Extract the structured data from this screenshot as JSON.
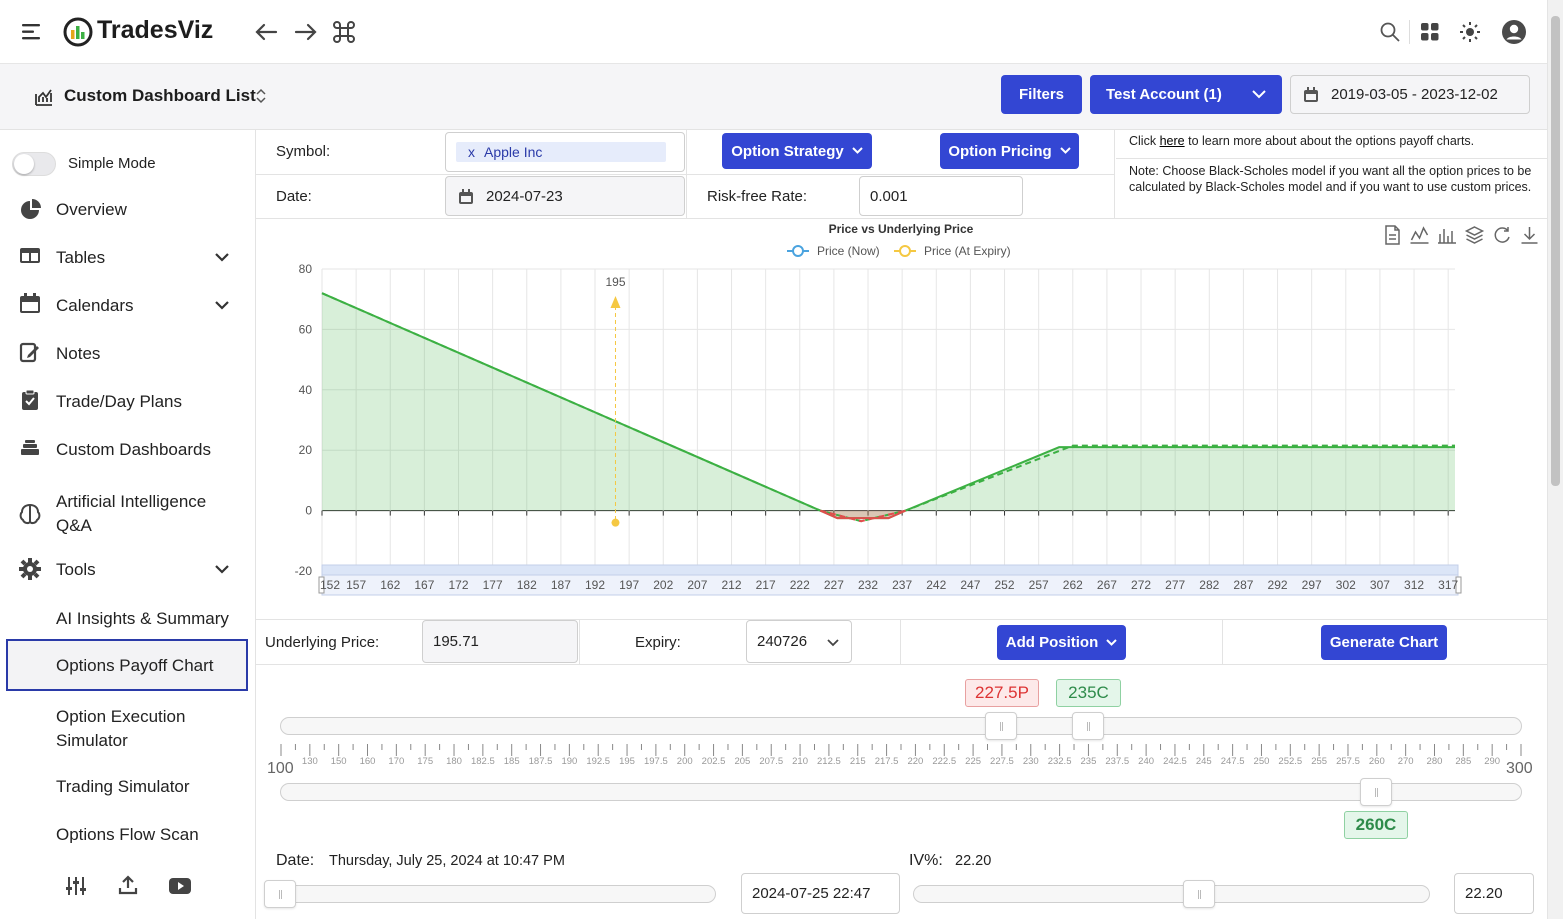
{
  "app": {
    "name": "TradesViz"
  },
  "subbar": {
    "title": "Custom Dashboard List",
    "filters_label": "Filters",
    "account_label": "Test Account (1)",
    "date_range": "2019-03-05 - 2023-12-02"
  },
  "sidebar": {
    "simple_mode_label": "Simple Mode",
    "items": [
      {
        "label": "Overview"
      },
      {
        "label": "Tables"
      },
      {
        "label": "Calendars"
      },
      {
        "label": "Notes"
      },
      {
        "label": "Trade/Day Plans"
      },
      {
        "label": "Custom Dashboards"
      },
      {
        "label": "Artificial Intelligence",
        "label2": "Q&A"
      },
      {
        "label": "Tools"
      }
    ],
    "subitems": [
      {
        "label": "AI Insights & Summary"
      },
      {
        "label": "Options Payoff Chart"
      },
      {
        "label": "Option Execution",
        "label2": "Simulator"
      },
      {
        "label": "Trading Simulator"
      },
      {
        "label": "Options Flow Scan"
      }
    ]
  },
  "form": {
    "symbol_label": "Symbol:",
    "symbol_tag_x": "x",
    "symbol_value": "Apple Inc",
    "date_label": "Date:",
    "date_value": "2024-07-23",
    "option_strategy_label": "Option Strategy",
    "option_pricing_label": "Option Pricing",
    "risk_free_label": "Risk-free Rate:",
    "risk_free_value": "0.001",
    "info_click": "Click",
    "info_link": "here",
    "info_rest": "to learn more about about the options payoff charts.",
    "note": "Note: Choose Black-Scholes model if you want all the option prices to be calculated by Black-Scholes model and if you want to use custom prices."
  },
  "chart_data": {
    "type": "area",
    "title": "Price vs Underlying Price",
    "legend": [
      "Price (Now)",
      "Price (At Expiry)"
    ],
    "colors": {
      "now": "#4aa3df",
      "expiry": "#f5c842",
      "payoff": "#3cb043",
      "loss": "#e14c4c"
    },
    "ylim": [
      -20,
      80
    ],
    "yticks": [
      -20,
      0,
      20,
      40,
      60,
      80
    ],
    "x_ticks": [
      "152",
      "157",
      "162",
      "167",
      "172",
      "177",
      "182",
      "187",
      "192",
      "197",
      "202",
      "207",
      "212",
      "217",
      "222",
      "227",
      "232",
      "237",
      "242",
      "247",
      "252",
      "257",
      "262",
      "267",
      "272",
      "277",
      "282",
      "287",
      "292",
      "297",
      "302",
      "307",
      "312",
      "317"
    ],
    "xlim": [
      152,
      318
    ],
    "expiry_series": {
      "x": [
        152,
        225,
        227.5,
        235,
        237.5,
        260,
        318
      ],
      "y": [
        72,
        0,
        -2.5,
        -2.5,
        0,
        21,
        21
      ]
    },
    "now_series": {
      "x": [
        152,
        225,
        231,
        237.5,
        258,
        262,
        318
      ],
      "y": [
        72,
        0,
        -3.5,
        0,
        18,
        21.5,
        21.5
      ]
    },
    "marker": {
      "x": 195,
      "label": "195"
    }
  },
  "controls": {
    "underlying_label": "Underlying Price:",
    "underlying_value": "195.71",
    "expiry_label": "Expiry:",
    "expiry_value": "240726",
    "add_position_label": "Add Position",
    "generate_label": "Generate Chart"
  },
  "strikes": {
    "put_tag": "227.5P",
    "call_tag": "235C",
    "call2_tag": "260C",
    "scale_min": "100",
    "scale_max": "300",
    "scale_labels": [
      "130",
      "150",
      "160",
      "170",
      "175",
      "180",
      "182.5",
      "185",
      "187.5",
      "190",
      "192.5",
      "195",
      "197.5",
      "200",
      "202.5",
      "205",
      "207.5",
      "210",
      "212.5",
      "215",
      "217.5",
      "220",
      "222.5",
      "225",
      "227.5",
      "230",
      "232.5",
      "235",
      "237.5",
      "240",
      "242.5",
      "245",
      "247.5",
      "250",
      "252.5",
      "255",
      "257.5",
      "260",
      "270",
      "280",
      "285",
      "290"
    ]
  },
  "bottom": {
    "date_label": "Date:",
    "date_text": "Thursday, July 25, 2024 at 10:47 PM",
    "date_input": "2024-07-25 22:47",
    "iv_label": "IV%:",
    "iv_text": "22.20",
    "iv_input": "22.20"
  }
}
